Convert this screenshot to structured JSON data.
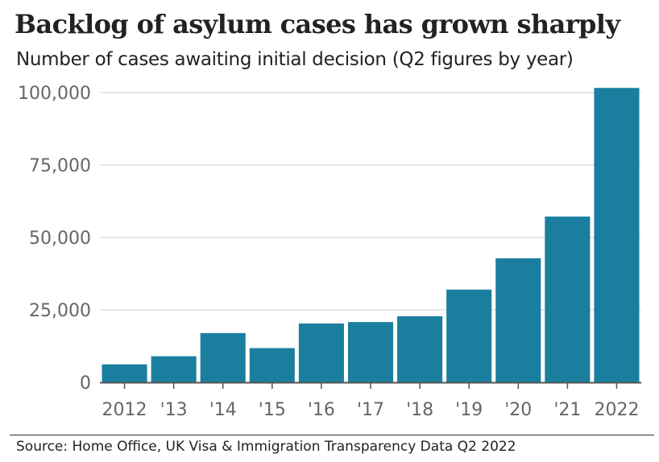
{
  "header": {
    "title": "Backlog of asylum cases has grown sharply",
    "subtitle": "Number of cases awaiting initial decision (Q2 figures by year)"
  },
  "footer": {
    "source": "Source: Home Office, UK Visa & Immigration Transparency Data Q2 2022"
  },
  "colors": {
    "bar": "#1a7f9e",
    "grid": "#cccccc",
    "axis": "#555555",
    "tick_text": "#666666"
  },
  "chart_data": {
    "type": "bar",
    "title": "Backlog of asylum cases has grown sharply",
    "subtitle": "Number of cases awaiting initial decision (Q2 figures by year)",
    "xlabel": "",
    "ylabel": "",
    "categories": [
      "2012",
      "'13",
      "'14",
      "'15",
      "'16",
      "'17",
      "'18",
      "'19",
      "'20",
      "'21",
      "2022"
    ],
    "values": [
      6200,
      9000,
      17000,
      11800,
      20300,
      20800,
      22800,
      32000,
      42800,
      57200,
      101600
    ],
    "ylim": [
      0,
      100000
    ],
    "yticks": [
      0,
      25000,
      50000,
      75000,
      100000
    ],
    "ytick_labels": [
      "0",
      "25,000",
      "50,000",
      "75,000",
      "100,000"
    ],
    "grid": true,
    "legend": "none"
  }
}
